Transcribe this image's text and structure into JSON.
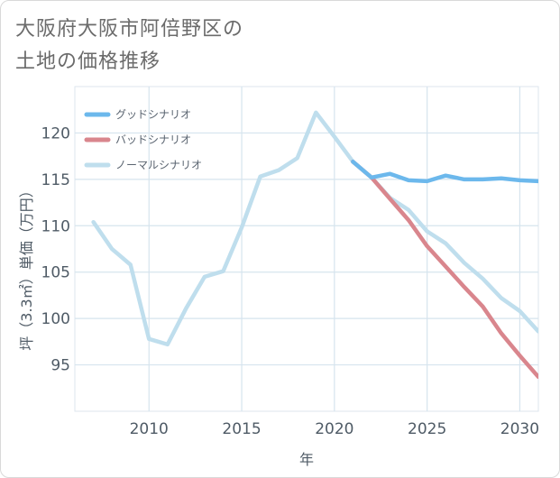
{
  "page": {
    "title_line1": "大阪府大阪市阿倍野区の",
    "title_line2": "土地の価格推移"
  },
  "chart_data": {
    "type": "line",
    "title": "大阪府大阪市阿倍野区の土地の価格推移",
    "xlabel": "年",
    "ylabel": "坪（3.3㎡）単価（万円）",
    "xlim": [
      2006,
      2031
    ],
    "ylim": [
      90,
      125
    ],
    "xticks": [
      2010,
      2015,
      2020,
      2025,
      2030
    ],
    "yticks": [
      95,
      100,
      105,
      110,
      115,
      120
    ],
    "grid": true,
    "legend_position": "top-left",
    "series": [
      {
        "name": "グッドシナリオ",
        "color": "#6cb8ec",
        "x": [
          2021,
          2022,
          2023,
          2024,
          2025,
          2026,
          2027,
          2028,
          2029,
          2030,
          2031
        ],
        "values": [
          116.9,
          115.2,
          115.6,
          114.9,
          114.8,
          115.4,
          115.0,
          115.0,
          115.1,
          114.9,
          114.8
        ]
      },
      {
        "name": "バッドシナリオ",
        "color": "#d9868d",
        "x": [
          2021,
          2022,
          2023,
          2024,
          2025,
          2026,
          2027,
          2028,
          2029,
          2030,
          2031
        ],
        "values": [
          116.9,
          115.2,
          112.9,
          110.6,
          107.8,
          105.6,
          103.4,
          101.3,
          98.4,
          96.0,
          93.7
        ]
      },
      {
        "name": "ノーマルシナリオ",
        "color": "#bfdeed",
        "x": [
          2007,
          2008,
          2009,
          2010,
          2011,
          2012,
          2013,
          2014,
          2015,
          2016,
          2017,
          2018,
          2019,
          2020,
          2021,
          2022,
          2023,
          2024,
          2025,
          2026,
          2027,
          2028,
          2029,
          2030,
          2031
        ],
        "values": [
          110.4,
          107.5,
          105.8,
          97.8,
          97.2,
          101.1,
          104.5,
          105.1,
          109.8,
          115.3,
          116.0,
          117.3,
          122.2,
          119.6,
          116.9,
          115.2,
          113.0,
          111.7,
          109.4,
          108.1,
          106.0,
          104.3,
          102.2,
          100.8,
          98.6
        ]
      }
    ]
  }
}
